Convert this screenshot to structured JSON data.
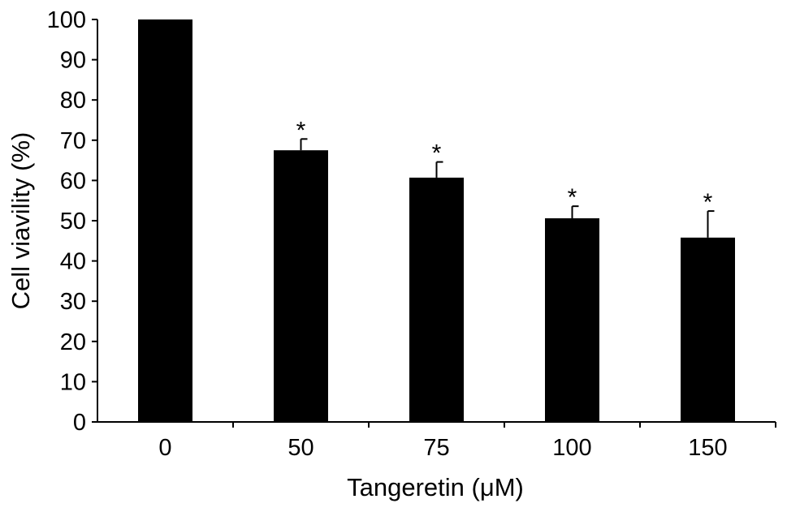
{
  "chart_data": {
    "type": "bar",
    "categories": [
      "0",
      "50",
      "75",
      "100",
      "150"
    ],
    "values": [
      100,
      67.5,
      60.7,
      50.6,
      45.8
    ],
    "error_plus": [
      0,
      2.8,
      3.9,
      3.0,
      6.6
    ],
    "significance": [
      "",
      "*",
      "*",
      "*",
      "*"
    ],
    "xlabel": "Tangeretin (μM)",
    "ylabel": "Cell viavility (%)",
    "ylim": [
      0,
      100
    ],
    "yticks": [
      0,
      10,
      20,
      30,
      40,
      50,
      60,
      70,
      80,
      90,
      100
    ],
    "grid": false,
    "bar_color": "#000000"
  }
}
